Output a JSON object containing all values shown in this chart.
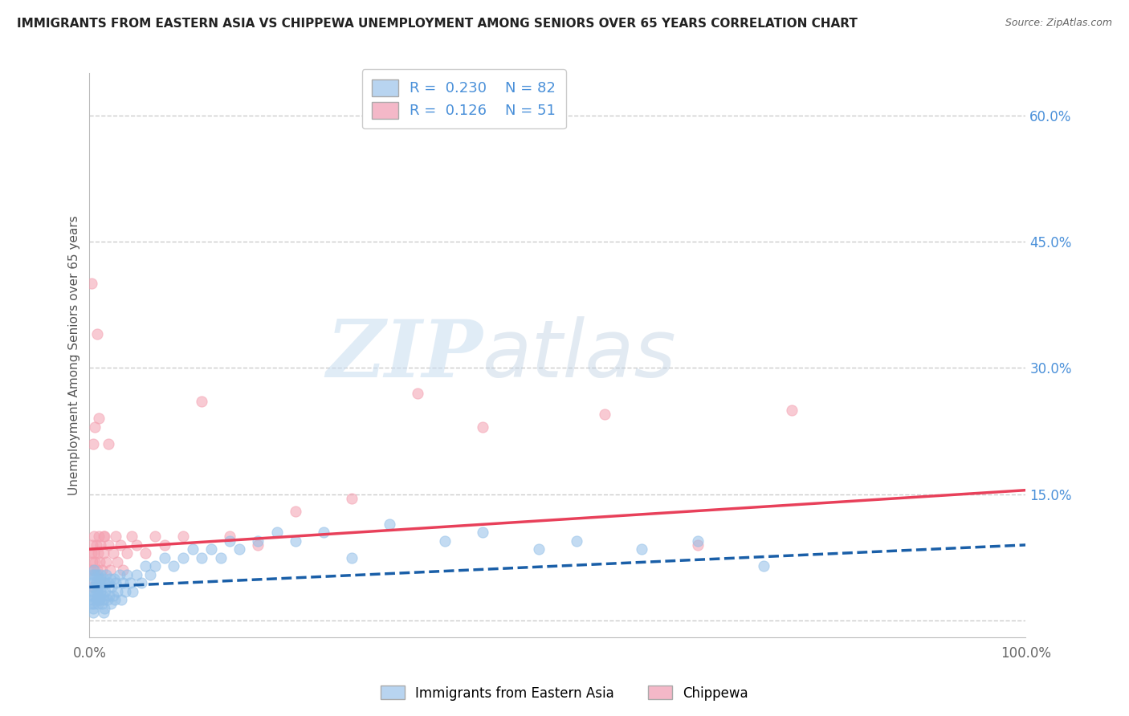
{
  "title": "IMMIGRANTS FROM EASTERN ASIA VS CHIPPEWA UNEMPLOYMENT AMONG SENIORS OVER 65 YEARS CORRELATION CHART",
  "source": "Source: ZipAtlas.com",
  "ylabel": "Unemployment Among Seniors over 65 years",
  "right_yticks": [
    0.0,
    0.15,
    0.3,
    0.45,
    0.6
  ],
  "right_yticklabels": [
    "",
    "15.0%",
    "30.0%",
    "45.0%",
    "60.0%"
  ],
  "blue_color": "#92bfe8",
  "pink_color": "#f4a0b0",
  "blue_line_color": "#1a5fa8",
  "pink_line_color": "#e8405a",
  "watermark_zip": "ZIP",
  "watermark_atlas": "atlas",
  "R_blue": 0.23,
  "N_blue": 82,
  "R_pink": 0.126,
  "N_pink": 51,
  "xlim": [
    0.0,
    1.0
  ],
  "ylim": [
    -0.02,
    0.65
  ],
  "figsize": [
    14.06,
    8.92
  ],
  "dpi": 100,
  "blue_scatter_x": [
    0.001,
    0.002,
    0.002,
    0.003,
    0.003,
    0.004,
    0.004,
    0.005,
    0.005,
    0.005,
    0.006,
    0.006,
    0.007,
    0.007,
    0.008,
    0.008,
    0.009,
    0.009,
    0.01,
    0.01,
    0.011,
    0.011,
    0.012,
    0.012,
    0.013,
    0.013,
    0.014,
    0.015,
    0.015,
    0.016,
    0.016,
    0.017,
    0.018,
    0.019,
    0.02,
    0.021,
    0.022,
    0.023,
    0.024,
    0.025,
    0.026,
    0.027,
    0.028,
    0.03,
    0.032,
    0.034,
    0.036,
    0.038,
    0.04,
    0.043,
    0.046,
    0.05,
    0.055,
    0.06,
    0.065,
    0.07,
    0.08,
    0.09,
    0.1,
    0.11,
    0.12,
    0.13,
    0.14,
    0.15,
    0.16,
    0.18,
    0.2,
    0.22,
    0.25,
    0.28,
    0.32,
    0.38,
    0.42,
    0.48,
    0.52,
    0.59,
    0.65,
    0.72,
    0.004,
    0.006,
    0.01,
    0.015
  ],
  "blue_scatter_y": [
    0.03,
    0.02,
    0.045,
    0.025,
    0.055,
    0.035,
    0.015,
    0.04,
    0.02,
    0.06,
    0.03,
    0.05,
    0.025,
    0.045,
    0.035,
    0.055,
    0.02,
    0.04,
    0.03,
    0.05,
    0.025,
    0.045,
    0.035,
    0.055,
    0.02,
    0.04,
    0.03,
    0.05,
    0.025,
    0.045,
    0.015,
    0.035,
    0.055,
    0.025,
    0.045,
    0.03,
    0.05,
    0.02,
    0.04,
    0.03,
    0.05,
    0.025,
    0.045,
    0.035,
    0.055,
    0.025,
    0.045,
    0.035,
    0.055,
    0.045,
    0.035,
    0.055,
    0.045,
    0.065,
    0.055,
    0.065,
    0.075,
    0.065,
    0.075,
    0.085,
    0.075,
    0.085,
    0.075,
    0.095,
    0.085,
    0.095,
    0.105,
    0.095,
    0.105,
    0.075,
    0.115,
    0.095,
    0.105,
    0.085,
    0.095,
    0.085,
    0.095,
    0.065,
    0.01,
    0.055,
    0.025,
    0.01
  ],
  "pink_scatter_x": [
    0.001,
    0.002,
    0.003,
    0.003,
    0.004,
    0.005,
    0.005,
    0.006,
    0.007,
    0.008,
    0.009,
    0.01,
    0.011,
    0.012,
    0.013,
    0.015,
    0.016,
    0.018,
    0.02,
    0.022,
    0.025,
    0.028,
    0.03,
    0.033,
    0.036,
    0.04,
    0.045,
    0.05,
    0.06,
    0.07,
    0.08,
    0.1,
    0.12,
    0.15,
    0.18,
    0.22,
    0.28,
    0.35,
    0.42,
    0.55,
    0.65,
    0.75,
    0.003,
    0.006,
    0.01,
    0.015,
    0.02,
    0.002,
    0.004,
    0.008,
    0.012
  ],
  "pink_scatter_y": [
    0.06,
    0.08,
    0.07,
    0.09,
    0.06,
    0.08,
    0.1,
    0.07,
    0.09,
    0.06,
    0.08,
    0.1,
    0.07,
    0.09,
    0.06,
    0.08,
    0.1,
    0.07,
    0.09,
    0.06,
    0.08,
    0.1,
    0.07,
    0.09,
    0.06,
    0.08,
    0.1,
    0.09,
    0.08,
    0.1,
    0.09,
    0.1,
    0.26,
    0.1,
    0.09,
    0.13,
    0.145,
    0.27,
    0.23,
    0.245,
    0.09,
    0.25,
    0.04,
    0.23,
    0.24,
    0.1,
    0.21,
    0.4,
    0.21,
    0.34,
    0.05
  ],
  "blue_trendline_x0": 0.0,
  "blue_trendline_y0": 0.04,
  "blue_trendline_x1": 1.0,
  "blue_trendline_y1": 0.09,
  "pink_trendline_x0": 0.0,
  "pink_trendline_y0": 0.085,
  "pink_trendline_x1": 1.0,
  "pink_trendline_y1": 0.155
}
